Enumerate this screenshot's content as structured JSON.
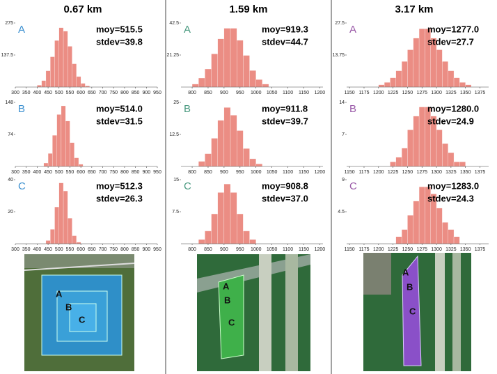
{
  "columns": [
    "0.67 km",
    "1.59 km",
    "3.17 km"
  ],
  "chart_data": [
    {
      "type": "histogram",
      "title": "A",
      "annotations": [
        "moy=515.5",
        "stdev=39.8"
      ],
      "color": "#e8796e",
      "bins": [
        400,
        420,
        440,
        460,
        480,
        500,
        520,
        540,
        560,
        580,
        600,
        620,
        640
      ],
      "values": [
        8,
        28,
        70,
        130,
        200,
        255,
        240,
        175,
        100,
        45,
        16,
        5
      ],
      "xlim": [
        300,
        950
      ],
      "xticks": [
        300,
        350,
        400,
        450,
        500,
        550,
        600,
        650,
        700,
        750,
        800,
        850,
        900,
        950
      ],
      "ylim": [
        0,
        275
      ],
      "yticks": [
        137.5,
        275
      ]
    },
    {
      "type": "histogram",
      "title": "A",
      "annotations": [
        "moy=919.3",
        "stdev=44.7"
      ],
      "color": "#e8796e",
      "bins": [
        800,
        820,
        840,
        860,
        880,
        900,
        920,
        940,
        960,
        980,
        1000,
        1020,
        1040
      ],
      "values": [
        2,
        6,
        12,
        22,
        32,
        39,
        39,
        31,
        21,
        11,
        5,
        2
      ],
      "xlim": [
        765,
        1210
      ],
      "xticks": [
        800,
        850,
        900,
        950,
        1000,
        1050,
        1100,
        1150,
        1200
      ],
      "ylim": [
        0,
        42.5
      ],
      "yticks": [
        21.25,
        42.5
      ]
    },
    {
      "type": "histogram",
      "title": "A",
      "annotations": [
        "moy=1277.0",
        "stdev=27.7"
      ],
      "color": "#e8796e",
      "bins": [
        1200,
        1210,
        1220,
        1230,
        1240,
        1250,
        1260,
        1270,
        1280,
        1290,
        1300,
        1310,
        1320,
        1330,
        1340,
        1350,
        1360
      ],
      "values": [
        1,
        2,
        4,
        7,
        11,
        16,
        21,
        25,
        25,
        21,
        16,
        11,
        7,
        4,
        2,
        1
      ],
      "xlim": [
        1145,
        1390
      ],
      "xticks": [
        1150,
        1175,
        1200,
        1225,
        1250,
        1275,
        1300,
        1325,
        1350,
        1375
      ],
      "ylim": [
        0,
        27.5
      ],
      "yticks": [
        13.75,
        27.5
      ]
    },
    {
      "type": "histogram",
      "title": "B",
      "annotations": [
        "moy=514.0",
        "stdev=31.5"
      ],
      "color": "#e8796e",
      "bins": [
        430,
        450,
        470,
        490,
        510,
        530,
        550,
        570,
        590,
        610
      ],
      "values": [
        8,
        30,
        72,
        120,
        140,
        105,
        55,
        20,
        5
      ],
      "xlim": [
        300,
        950
      ],
      "xticks": [
        300,
        350,
        400,
        450,
        500,
        550,
        600,
        650,
        700,
        750,
        800,
        850,
        900,
        950
      ],
      "ylim": [
        0,
        148
      ],
      "yticks": [
        74,
        148
      ]
    },
    {
      "type": "histogram",
      "title": "B",
      "annotations": [
        "moy=911.8",
        "stdev=39.7"
      ],
      "color": "#e8796e",
      "bins": [
        820,
        840,
        860,
        880,
        900,
        920,
        940,
        960,
        980,
        1000,
        1020
      ],
      "values": [
        2,
        5,
        11,
        18,
        23,
        20,
        14,
        7,
        3,
        1
      ],
      "xlim": [
        765,
        1210
      ],
      "xticks": [
        800,
        850,
        900,
        950,
        1000,
        1050,
        1100,
        1150,
        1200
      ],
      "ylim": [
        0,
        25
      ],
      "yticks": [
        12.5,
        25
      ]
    },
    {
      "type": "histogram",
      "title": "B",
      "annotations": [
        "moy=1280.0",
        "stdev=24.9"
      ],
      "color": "#e8796e",
      "bins": [
        1220,
        1230,
        1240,
        1250,
        1260,
        1270,
        1280,
        1290,
        1300,
        1310,
        1320,
        1330,
        1340,
        1350
      ],
      "values": [
        1,
        2,
        4,
        8,
        11,
        13,
        13,
        11,
        8,
        5,
        3,
        1,
        1
      ],
      "xlim": [
        1145,
        1390
      ],
      "xticks": [
        1150,
        1175,
        1200,
        1225,
        1250,
        1275,
        1300,
        1325,
        1350,
        1375
      ],
      "ylim": [
        0,
        14
      ],
      "yticks": [
        7,
        14
      ]
    },
    {
      "type": "histogram",
      "title": "C",
      "annotations": [
        "moy=512.3",
        "stdev=26.3"
      ],
      "color": "#e8796e",
      "bins": [
        440,
        460,
        480,
        500,
        520,
        540,
        560,
        580,
        600
      ],
      "values": [
        2,
        9,
        23,
        38,
        33,
        16,
        5,
        1
      ],
      "xlim": [
        300,
        950
      ],
      "xticks": [
        300,
        350,
        400,
        450,
        500,
        550,
        600,
        650,
        700,
        750,
        800,
        850,
        900,
        950
      ],
      "ylim": [
        0,
        40
      ],
      "yticks": [
        20,
        40
      ]
    },
    {
      "type": "histogram",
      "title": "C",
      "annotations": [
        "moy=908.8",
        "stdev=37.0"
      ],
      "color": "#e8796e",
      "bins": [
        820,
        840,
        860,
        880,
        900,
        920,
        940,
        960,
        980,
        1000
      ],
      "values": [
        1,
        3,
        7,
        12,
        14,
        12,
        7,
        3,
        1
      ],
      "xlim": [
        765,
        1210
      ],
      "xticks": [
        800,
        850,
        900,
        950,
        1000,
        1050,
        1100,
        1150,
        1200
      ],
      "ylim": [
        0,
        15
      ],
      "yticks": [
        7.5,
        15
      ]
    },
    {
      "type": "histogram",
      "title": "C",
      "annotations": [
        "moy=1283.0",
        "stdev=24.3"
      ],
      "color": "#e8796e",
      "bins": [
        1230,
        1240,
        1250,
        1260,
        1270,
        1280,
        1290,
        1300,
        1310,
        1320,
        1330,
        1340
      ],
      "values": [
        1,
        2,
        4,
        6,
        8,
        8,
        7,
        5,
        3,
        2,
        1
      ],
      "xlim": [
        1145,
        1390
      ],
      "xticks": [
        1150,
        1175,
        1200,
        1225,
        1250,
        1275,
        1300,
        1325,
        1350,
        1375
      ],
      "ylim": [
        0,
        9
      ],
      "yticks": [
        4.5,
        9
      ]
    }
  ],
  "maps": [
    {
      "labels": [
        "A",
        "B",
        "C"
      ]
    },
    {
      "labels": [
        "A",
        "B",
        "C"
      ]
    },
    {
      "labels": [
        "A",
        "B",
        "C"
      ]
    }
  ]
}
